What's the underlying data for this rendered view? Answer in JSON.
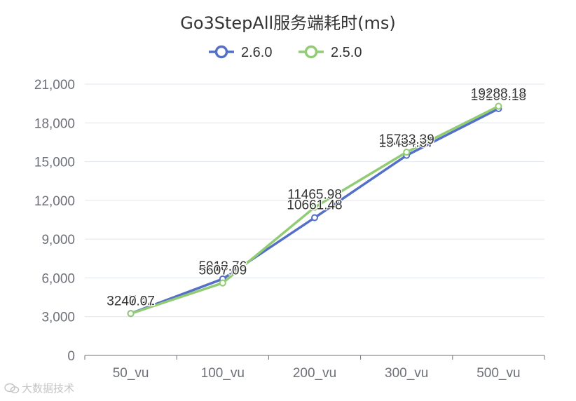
{
  "chart_data": {
    "type": "line",
    "title": "Go3StepAll服务端耗时(ms)",
    "categories": [
      "50_vu",
      "100_vu",
      "200_vu",
      "300_vu",
      "500_vu"
    ],
    "series": [
      {
        "name": "2.6.0",
        "color": "#5470c6",
        "values": [
          3247.42,
          5918.76,
          10661.48,
          15484.37,
          19100.18
        ]
      },
      {
        "name": "2.5.0",
        "color": "#91cc75",
        "values": [
          3240.07,
          5607.09,
          11465.98,
          15733.39,
          19288.18
        ]
      }
    ],
    "ylim": [
      0,
      21000
    ],
    "yticks": [
      "0",
      "3,000",
      "6,000",
      "9,000",
      "12,000",
      "15,000",
      "18,000",
      "21,000"
    ],
    "xlabel": "",
    "ylabel": "",
    "legend": "top-center",
    "grid": true
  },
  "watermark": {
    "text": "大数据技术"
  }
}
